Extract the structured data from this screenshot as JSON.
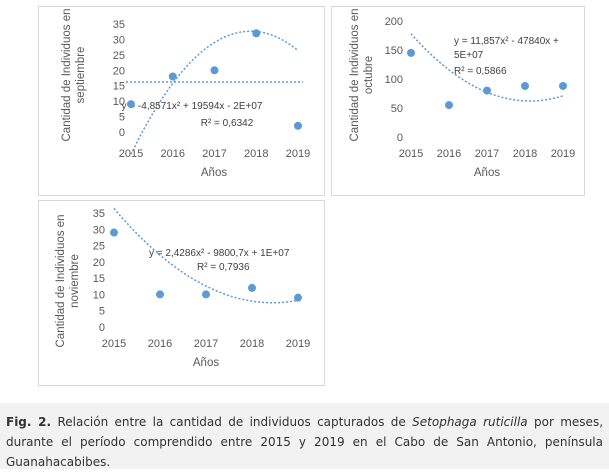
{
  "caption": {
    "label": "Fig. 2.",
    "text_before": " Relación entre la cantidad de individuos capturados de ",
    "species": "Setophaga ruticilla",
    "text_after": " por meses, durante el período comprendido entre 2015 y 2019 en el Cabo de San Antonio, península Guanahacabibes."
  },
  "colors": {
    "marker": "#5b9bd5",
    "trend": "#5b9bd5",
    "text": "#595959"
  },
  "chart_data": [
    {
      "type": "scatter",
      "x": [
        2015,
        2016,
        2017,
        2018,
        2019
      ],
      "values": [
        9,
        18,
        20,
        32,
        2
      ],
      "categories": [
        "2015",
        "2016",
        "2017",
        "2018",
        "2019"
      ],
      "xlabel": "Años",
      "ylabel_lines": [
        "Cantidad de Individuos en",
        "septiembre"
      ],
      "ylim": [
        0,
        35
      ],
      "yticks": [
        0,
        5,
        10,
        15,
        20,
        25,
        30,
        35
      ],
      "yticklabels": [
        "0",
        "5",
        "10",
        "15",
        "20",
        "25",
        "30",
        "35"
      ],
      "mean_line": 16.2,
      "trendline": {
        "type": "polynomial-2",
        "coef": [
          -4.8571,
          27.8286,
          -7.2
        ]
      },
      "equation": "y = -4,8571x² + 19594x - 2E+07",
      "r2": "R² = 0,6342",
      "grid": false
    },
    {
      "type": "scatter",
      "x": [
        2015,
        2016,
        2017,
        2018,
        2019
      ],
      "values": [
        145,
        55,
        80,
        88,
        88
      ],
      "categories": [
        "2015",
        "2016",
        "2017",
        "2018",
        "2019"
      ],
      "xlabel": "Años",
      "ylabel_lines": [
        "Cantidad de Individuos en",
        "octubre"
      ],
      "ylim": [
        0,
        200
      ],
      "yticks": [
        0,
        50,
        100,
        150,
        200
      ],
      "yticklabels": [
        "0",
        "50",
        "100",
        "150",
        "200"
      ],
      "trendline": {
        "type": "polynomial-2",
        "coef": [
          11.857,
          -74.171,
          178
        ]
      },
      "equation_lines": [
        "y = 11,857x² - 47840x +",
        "5E+07"
      ],
      "r2": "R² = 0,5866",
      "grid": false
    },
    {
      "type": "scatter",
      "x": [
        2015,
        2016,
        2017,
        2018,
        2019
      ],
      "values": [
        29,
        10,
        10,
        12,
        9
      ],
      "categories": [
        "2015",
        "2016",
        "2017",
        "2018",
        "2019"
      ],
      "xlabel": "Años",
      "ylabel_lines": [
        "Cantidad de Individuos en",
        "noviembre"
      ],
      "ylim": [
        0,
        35
      ],
      "yticks": [
        0,
        5,
        10,
        15,
        20,
        25,
        30,
        35
      ],
      "yticklabels": [
        "0",
        "5",
        "10",
        "15",
        "20",
        "25",
        "30",
        "35"
      ],
      "trendline": {
        "type": "polynomial-2",
        "coef": [
          2.4286,
          -16.7714,
          36.4
        ]
      },
      "equation": "y = 2,4286x² - 9800,7x + 1E+07",
      "r2": "R² = 0,7936",
      "grid": false
    }
  ]
}
